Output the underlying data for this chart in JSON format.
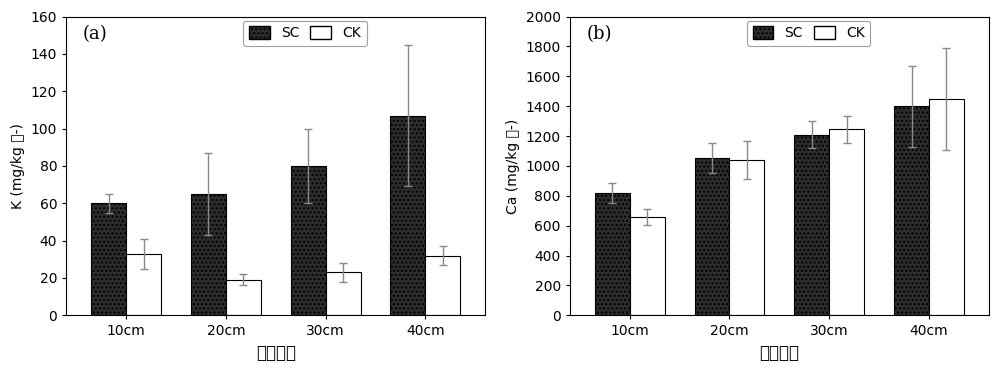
{
  "categories": [
    "10cm",
    "20cm",
    "30cm",
    "40cm"
  ],
  "subplot_a": {
    "label": "(a)",
    "ylabel": "K (mg/kg 土-)",
    "ylim": [
      0,
      160
    ],
    "yticks": [
      0,
      20,
      40,
      60,
      80,
      100,
      120,
      140,
      160
    ],
    "sc_values": [
      60,
      65,
      80,
      107
    ],
    "sc_errors": [
      5,
      22,
      20,
      38
    ],
    "ck_values": [
      33,
      19,
      23,
      32
    ],
    "ck_errors": [
      8,
      3,
      5,
      5
    ]
  },
  "subplot_b": {
    "label": "(b)",
    "ylabel": "Ca (mg/kg 土-)",
    "ylim": [
      0,
      2000
    ],
    "yticks": [
      0,
      200,
      400,
      600,
      800,
      1000,
      1200,
      1400,
      1600,
      1800,
      2000
    ],
    "sc_values": [
      820,
      1055,
      1210,
      1400
    ],
    "sc_errors": [
      65,
      100,
      90,
      270
    ],
    "ck_values": [
      660,
      1040,
      1245,
      1450
    ],
    "ck_errors": [
      55,
      130,
      90,
      340
    ]
  },
  "xlabel": "土壤深度",
  "sc_color": "#2d2d2d",
  "ck_color": "#ffffff",
  "bar_edge_color": "#000000",
  "error_color": "#888888",
  "bar_width": 0.35,
  "legend_labels": [
    "SC",
    "CK"
  ],
  "background_color": "#ffffff",
  "figure_background": "#ffffff"
}
